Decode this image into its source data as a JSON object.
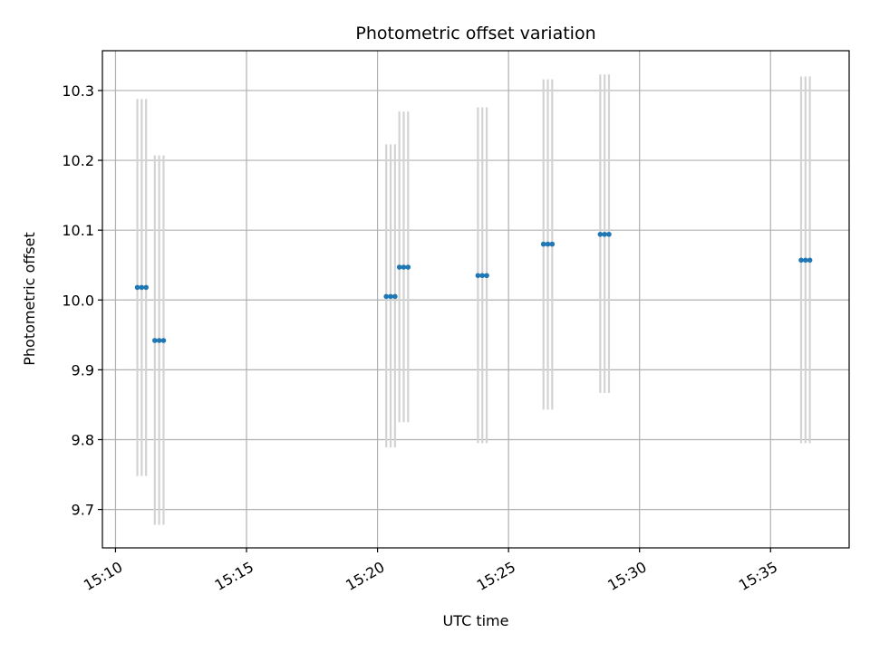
{
  "chart_data": {
    "type": "scatter",
    "title": "Photometric offset variation",
    "xlabel": "UTC time",
    "ylabel": "Photometric offset",
    "x_ticks": [
      "15:10",
      "15:15",
      "15:20",
      "15:25",
      "15:30",
      "15:35"
    ],
    "y_ticks": [
      "9.7",
      "9.8",
      "9.9",
      "10.0",
      "10.1",
      "10.2",
      "10.3"
    ],
    "xlim": [
      "15:09:30",
      "15:38:00"
    ],
    "ylim": [
      9.645,
      10.357
    ],
    "grid": true,
    "marker_color": "#1f77b4",
    "errorbar_color": "#d3d3d3",
    "points": [
      {
        "x": "15:10:50",
        "y": 10.018,
        "err_low": 9.748,
        "err_high": 10.288
      },
      {
        "x": "15:11:00",
        "y": 10.018,
        "err_low": 9.748,
        "err_high": 10.288
      },
      {
        "x": "15:11:10",
        "y": 10.018,
        "err_low": 9.748,
        "err_high": 10.288
      },
      {
        "x": "15:11:30",
        "y": 9.942,
        "err_low": 9.678,
        "err_high": 10.207
      },
      {
        "x": "15:11:40",
        "y": 9.942,
        "err_low": 9.678,
        "err_high": 10.207
      },
      {
        "x": "15:11:50",
        "y": 9.942,
        "err_low": 9.678,
        "err_high": 10.207
      },
      {
        "x": "15:20:20",
        "y": 10.005,
        "err_low": 9.789,
        "err_high": 10.223
      },
      {
        "x": "15:20:30",
        "y": 10.005,
        "err_low": 9.789,
        "err_high": 10.223
      },
      {
        "x": "15:20:40",
        "y": 10.005,
        "err_low": 9.789,
        "err_high": 10.223
      },
      {
        "x": "15:20:50",
        "y": 10.047,
        "err_low": 9.825,
        "err_high": 10.27
      },
      {
        "x": "15:21:00",
        "y": 10.047,
        "err_low": 9.825,
        "err_high": 10.27
      },
      {
        "x": "15:21:10",
        "y": 10.047,
        "err_low": 9.825,
        "err_high": 10.27
      },
      {
        "x": "15:23:50",
        "y": 10.035,
        "err_low": 9.795,
        "err_high": 10.276
      },
      {
        "x": "15:24:00",
        "y": 10.035,
        "err_low": 9.795,
        "err_high": 10.276
      },
      {
        "x": "15:24:10",
        "y": 10.035,
        "err_low": 9.795,
        "err_high": 10.276
      },
      {
        "x": "15:26:20",
        "y": 10.08,
        "err_low": 9.843,
        "err_high": 10.316
      },
      {
        "x": "15:26:30",
        "y": 10.08,
        "err_low": 9.843,
        "err_high": 10.316
      },
      {
        "x": "15:26:40",
        "y": 10.08,
        "err_low": 9.843,
        "err_high": 10.316
      },
      {
        "x": "15:28:30",
        "y": 10.094,
        "err_low": 9.867,
        "err_high": 10.323
      },
      {
        "x": "15:28:40",
        "y": 10.094,
        "err_low": 9.867,
        "err_high": 10.323
      },
      {
        "x": "15:28:50",
        "y": 10.094,
        "err_low": 9.867,
        "err_high": 10.323
      },
      {
        "x": "15:36:10",
        "y": 10.057,
        "err_low": 9.795,
        "err_high": 10.32
      },
      {
        "x": "15:36:20",
        "y": 10.057,
        "err_low": 9.795,
        "err_high": 10.32
      },
      {
        "x": "15:36:30",
        "y": 10.057,
        "err_low": 9.795,
        "err_high": 10.32
      }
    ]
  }
}
